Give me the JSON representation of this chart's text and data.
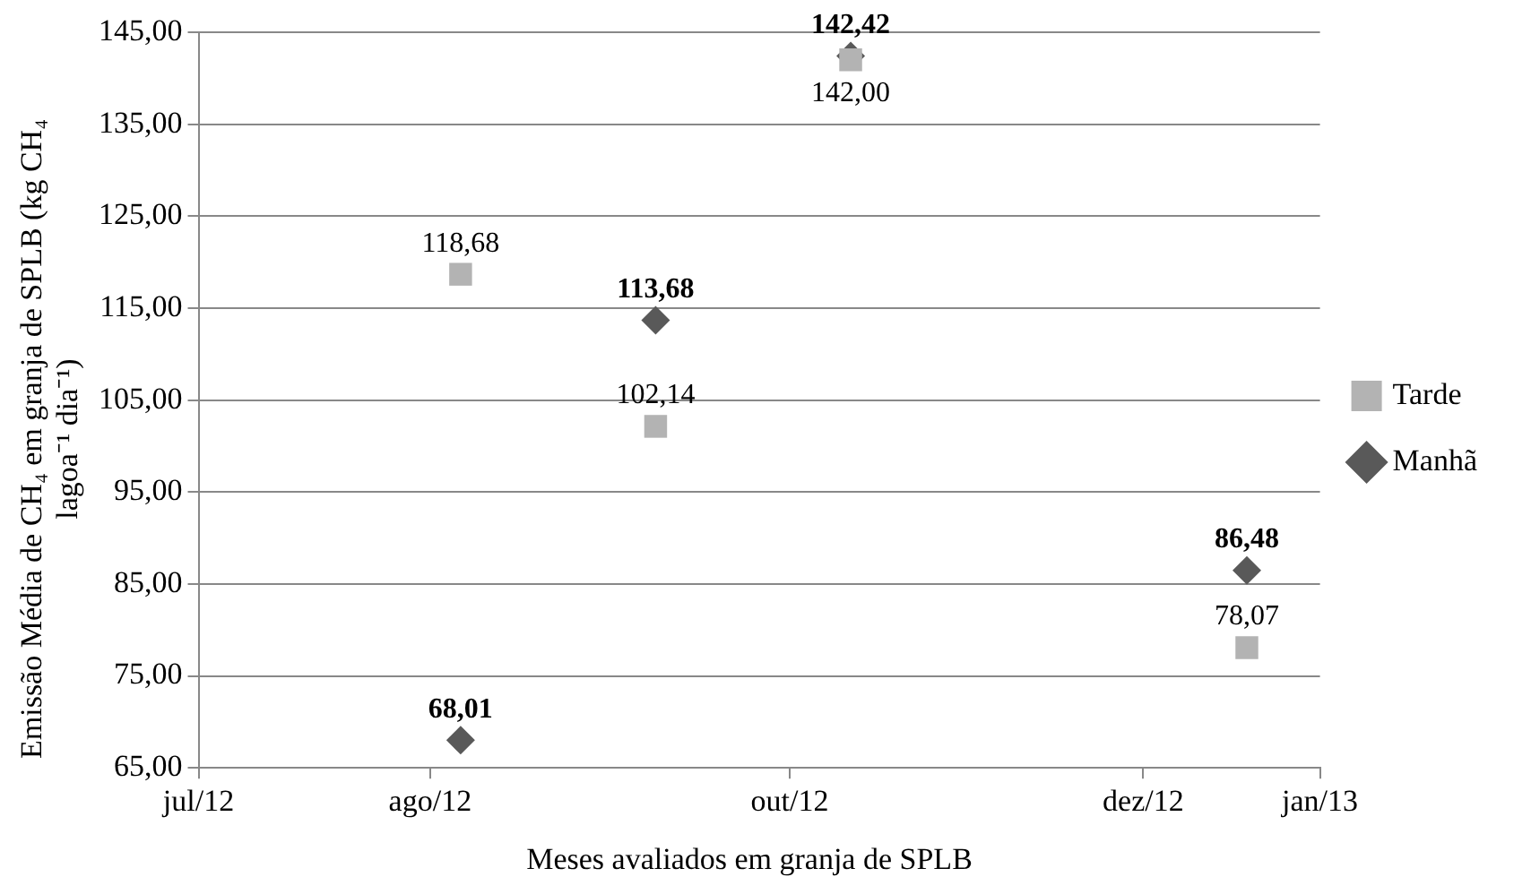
{
  "chart_data": {
    "type": "scatter",
    "xlabel": "Meses avaliados em granja de SPLB",
    "ylabel": "Emissão Média de CH₄ em granja de SPLB  (kg CH₄ lagoa⁻¹ dia⁻¹)",
    "x": [
      "2012-08-13",
      "2012-09-14",
      "2012-10-16",
      "2012-12-20"
    ],
    "series": [
      {
        "name": "Manhã",
        "color": "#595959",
        "marker": "diamond",
        "values": [
          68.01,
          113.68,
          142.42,
          86.48
        ],
        "value_labels": [
          "68,01",
          "113,68",
          "142,42",
          "86,48"
        ]
      },
      {
        "name": "Tarde",
        "color": "#b3b3b3",
        "marker": "square",
        "values": [
          118.68,
          102.14,
          142.0,
          78.07
        ],
        "value_labels": [
          "118,68",
          "102,14",
          "142,00",
          "78,07"
        ]
      }
    ],
    "xlim": [
      "2012-07-01",
      "2013-01-01"
    ],
    "xticks": [
      {
        "value": "2012-07-01",
        "label": "jul/12"
      },
      {
        "value": "2012-08-08",
        "label": "ago/12"
      },
      {
        "value": "2012-10-06",
        "label": "out/12"
      },
      {
        "value": "2012-12-03",
        "label": "dez/12"
      },
      {
        "value": "2013-01-01",
        "label": "jan/13"
      }
    ],
    "ylim": [
      65,
      145
    ],
    "yticks": [
      {
        "value": 65,
        "label": "65,00"
      },
      {
        "value": 75,
        "label": "75,00"
      },
      {
        "value": 85,
        "label": "85,00"
      },
      {
        "value": 95,
        "label": "95,00"
      },
      {
        "value": 105,
        "label": "105,00"
      },
      {
        "value": 115,
        "label": "115,00"
      },
      {
        "value": 125,
        "label": "125,00"
      },
      {
        "value": 135,
        "label": "135,00"
      },
      {
        "value": 145,
        "label": "145,00"
      }
    ],
    "grid": "y",
    "legend": "right"
  }
}
